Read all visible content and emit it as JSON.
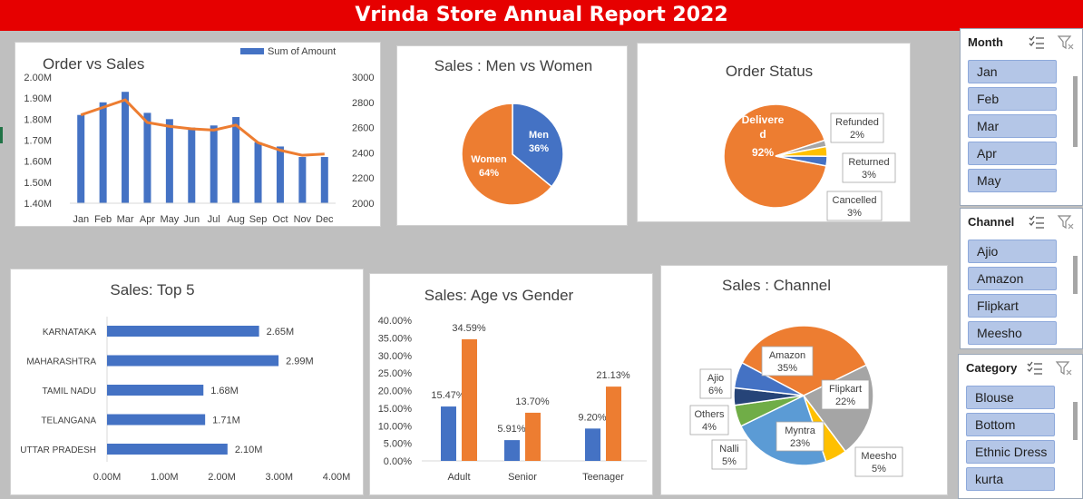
{
  "header": {
    "title": "Vrinda Store Annual Report 2022"
  },
  "colors": {
    "banner": "#e60000",
    "blue": "#4472c4",
    "orange": "#ed7d31",
    "gray": "#a5a5a5",
    "yellow": "#ffc000",
    "navy": "#264478",
    "green": "#70ad47"
  },
  "chart_data": [
    {
      "type": "bar+line",
      "title": "Order vs Sales",
      "legend": "Sum of Amount",
      "legend_position": "top",
      "categories": [
        "Jan",
        "Feb",
        "Mar",
        "Apr",
        "May",
        "Jun",
        "Jul",
        "Aug",
        "Sep",
        "Oct",
        "Nov",
        "Dec"
      ],
      "series": [
        {
          "name": "Sum of Amount",
          "type": "bar",
          "values": [
            1.82,
            1.88,
            1.93,
            1.83,
            1.8,
            1.76,
            1.77,
            1.81,
            1.69,
            1.67,
            1.62,
            1.62
          ]
        },
        {
          "type": "line",
          "axis": "secondary",
          "values": [
            2700,
            2760,
            2820,
            2640,
            2610,
            2590,
            2580,
            2620,
            2480,
            2420,
            2380,
            2390
          ]
        }
      ],
      "ylim": [
        1.4,
        2.0
      ],
      "yticks": [
        "1.40M",
        "1.50M",
        "1.60M",
        "1.70M",
        "1.80M",
        "1.90M",
        "2.00M"
      ],
      "y2lim": [
        2000,
        3000
      ],
      "y2ticks": [
        "2000",
        "2200",
        "2400",
        "2600",
        "2800",
        "3000"
      ]
    },
    {
      "type": "pie",
      "title": "Sales : Men vs Women",
      "slices": [
        {
          "label": "Men",
          "pct": "36%",
          "value": 36,
          "color": "#4472c4"
        },
        {
          "label": "Women",
          "pct": "64%",
          "value": 64,
          "color": "#ed7d31"
        }
      ]
    },
    {
      "type": "pie",
      "title": "Order Status",
      "slices": [
        {
          "label": "Delivered",
          "pct": "92%",
          "value": 92,
          "color": "#ed7d31"
        },
        {
          "label": "Refunded",
          "pct": "2%",
          "value": 2,
          "color": "#a5a5a5"
        },
        {
          "label": "Returned",
          "pct": "3%",
          "value": 3,
          "color": "#ffc000"
        },
        {
          "label": "Cancelled",
          "pct": "3%",
          "value": 3,
          "color": "#4472c4"
        }
      ]
    },
    {
      "type": "bar",
      "orientation": "horizontal",
      "title": "Sales: Top 5",
      "categories": [
        "KARNATAKA",
        "MAHARASHTRA",
        "TAMIL NADU",
        "TELANGANA",
        "UTTAR PRADESH"
      ],
      "values": [
        2.65,
        2.99,
        1.68,
        1.71,
        2.1
      ],
      "labels": [
        "2.65M",
        "2.99M",
        "1.68M",
        "1.71M",
        "2.10M"
      ],
      "xlim": [
        0,
        4
      ],
      "xticks": [
        "0.00M",
        "1.00M",
        "2.00M",
        "3.00M",
        "4.00M"
      ]
    },
    {
      "type": "bar",
      "title": "Sales: Age vs Gender",
      "categories": [
        "Adult",
        "Senior",
        "Teenager"
      ],
      "series": [
        {
          "values": [
            15.47,
            5.91,
            9.2
          ],
          "labels": [
            "15.47%",
            "5.91%",
            "9.20%"
          ],
          "color": "#4472c4"
        },
        {
          "values": [
            34.59,
            13.7,
            21.13
          ],
          "labels": [
            "34.59%",
            "13.70%",
            "21.13%"
          ],
          "color": "#ed7d31"
        }
      ],
      "ylim": [
        0,
        40
      ],
      "yticks": [
        "0.00%",
        "5.00%",
        "10.00%",
        "15.00%",
        "20.00%",
        "25.00%",
        "30.00%",
        "35.00%",
        "40.00%"
      ]
    },
    {
      "type": "pie",
      "title": "Sales : Channel",
      "slices": [
        {
          "label": "Amazon",
          "pct": "35%",
          "value": 35,
          "color": "#ed7d31"
        },
        {
          "label": "Flipkart",
          "pct": "22%",
          "value": 22,
          "color": "#a5a5a5"
        },
        {
          "label": "Meesho",
          "pct": "5%",
          "value": 5,
          "color": "#ffc000"
        },
        {
          "label": "Myntra",
          "pct": "23%",
          "value": 23,
          "color": "#5b9bd5"
        },
        {
          "label": "Nalli",
          "pct": "5%",
          "value": 5,
          "color": "#70ad47"
        },
        {
          "label": "Others",
          "pct": "4%",
          "value": 4,
          "color": "#264478"
        },
        {
          "label": "Ajio",
          "pct": "6%",
          "value": 6,
          "color": "#4472c4"
        }
      ]
    }
  ],
  "slicers": [
    {
      "title": "Month",
      "items": [
        "Jan",
        "Feb",
        "Mar",
        "Apr",
        "May"
      ]
    },
    {
      "title": "Channel",
      "items": [
        "Ajio",
        "Amazon",
        "Flipkart",
        "Meesho"
      ]
    },
    {
      "title": "Category",
      "items": [
        "Blouse",
        "Bottom",
        "Ethnic Dress",
        "kurta"
      ]
    }
  ]
}
